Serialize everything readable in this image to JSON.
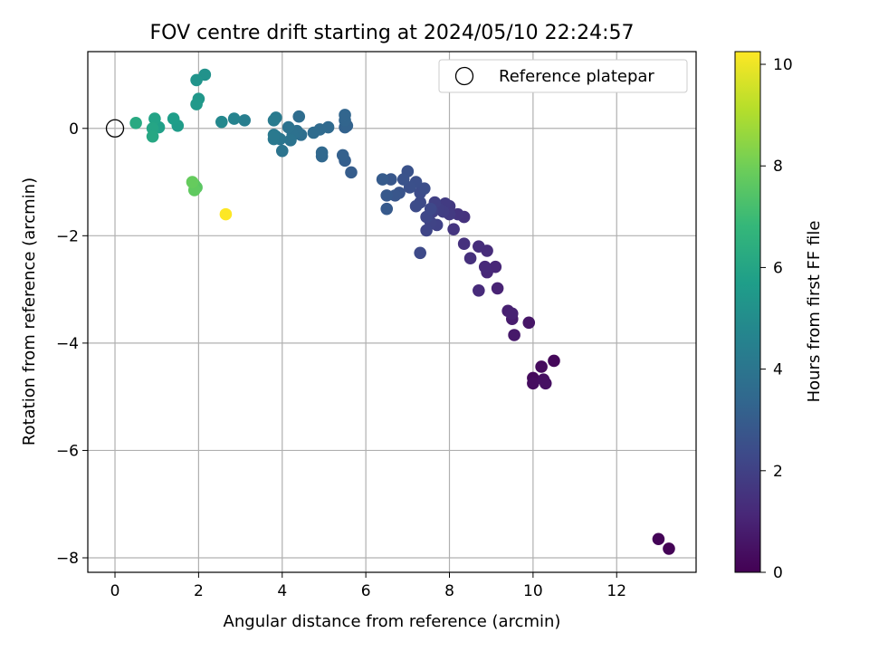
{
  "chart_data": {
    "type": "scatter",
    "title": "FOV centre drift starting at 2024/05/10 22:24:57",
    "xlabel": "Angular distance from reference (arcmin)",
    "ylabel": "Rotation from reference (arcmin)",
    "xlim": [
      -0.65,
      13.9
    ],
    "ylim": [
      -8.27,
      1.43
    ],
    "xticks": [
      0,
      2,
      4,
      6,
      8,
      10,
      12
    ],
    "yticks": [
      0,
      -2,
      -4,
      -6,
      -8
    ],
    "grid": true,
    "legend": {
      "position": "top-right",
      "entries": [
        {
          "label": "Reference platepar",
          "marker": "open-circle"
        }
      ]
    },
    "reference_point": {
      "x": 0,
      "y": 0
    },
    "colorbar": {
      "label": "Hours from first FF file",
      "min": 0,
      "max": 10.25,
      "ticks": [
        0,
        2,
        4,
        6,
        8,
        10
      ],
      "colormap": "viridis",
      "colors": [
        "#440154",
        "#482878",
        "#3e4989",
        "#31688e",
        "#26828e",
        "#1f9e89",
        "#35b779",
        "#6ece58",
        "#b5de2b",
        "#fde725"
      ]
    },
    "series": [
      {
        "points": [
          [
            13.25,
            -7.83,
            0.05
          ],
          [
            13.0,
            -7.65,
            0.1
          ],
          [
            10.5,
            -4.33,
            0.2
          ],
          [
            10.2,
            -4.44,
            0.3
          ],
          [
            10.0,
            -4.65,
            0.25
          ],
          [
            10.0,
            -4.75,
            0.35
          ],
          [
            10.25,
            -4.68,
            0.4
          ],
          [
            10.3,
            -4.75,
            0.45
          ],
          [
            9.9,
            -3.62,
            0.6
          ],
          [
            9.55,
            -3.85,
            0.7
          ],
          [
            9.5,
            -3.55,
            0.8
          ],
          [
            9.4,
            -3.4,
            0.9
          ],
          [
            9.5,
            -3.45,
            0.95
          ],
          [
            9.15,
            -2.98,
            1.0
          ],
          [
            9.1,
            -2.58,
            1.1
          ],
          [
            8.9,
            -2.68,
            1.15
          ],
          [
            8.85,
            -2.58,
            1.2
          ],
          [
            8.7,
            -3.02,
            1.25
          ],
          [
            8.9,
            -2.28,
            1.3
          ],
          [
            8.7,
            -2.2,
            1.35
          ],
          [
            8.5,
            -2.42,
            1.4
          ],
          [
            8.35,
            -2.15,
            1.45
          ],
          [
            8.35,
            -1.65,
            1.5
          ],
          [
            8.2,
            -1.6,
            1.55
          ],
          [
            8.1,
            -1.88,
            1.6
          ],
          [
            8.0,
            -1.45,
            1.7
          ],
          [
            8.0,
            -1.6,
            1.75
          ],
          [
            7.9,
            -1.4,
            1.8
          ],
          [
            7.85,
            -1.55,
            1.85
          ],
          [
            7.75,
            -1.5,
            1.9
          ],
          [
            7.65,
            -1.38,
            1.95
          ],
          [
            7.6,
            -1.55,
            2.0
          ],
          [
            7.7,
            -1.8,
            2.05
          ],
          [
            7.55,
            -1.75,
            2.1
          ],
          [
            7.45,
            -1.9,
            2.15
          ],
          [
            7.45,
            -1.65,
            2.2
          ],
          [
            7.55,
            -1.5,
            2.25
          ],
          [
            7.3,
            -1.38,
            2.3
          ],
          [
            7.2,
            -1.45,
            2.35
          ],
          [
            7.3,
            -1.2,
            2.4
          ],
          [
            7.4,
            -1.12,
            2.45
          ],
          [
            7.2,
            -1.0,
            2.5
          ],
          [
            7.05,
            -1.1,
            2.55
          ],
          [
            7.0,
            -0.8,
            2.6
          ],
          [
            6.9,
            -0.95,
            2.65
          ],
          [
            6.8,
            -1.2,
            2.7
          ],
          [
            6.7,
            -1.25,
            2.75
          ],
          [
            6.6,
            -0.95,
            2.8
          ],
          [
            6.5,
            -1.25,
            2.85
          ],
          [
            6.5,
            -1.5,
            2.9
          ],
          [
            6.4,
            -0.95,
            2.95
          ],
          [
            7.3,
            -2.32,
            2.3
          ],
          [
            5.65,
            -0.82,
            3.0
          ],
          [
            5.5,
            -0.6,
            3.1
          ],
          [
            5.45,
            -0.5,
            3.15
          ],
          [
            5.5,
            0.02,
            3.2
          ],
          [
            5.55,
            0.05,
            3.25
          ],
          [
            5.5,
            0.15,
            3.3
          ],
          [
            5.5,
            0.25,
            3.35
          ],
          [
            4.95,
            -0.52,
            3.4
          ],
          [
            4.95,
            -0.45,
            3.45
          ],
          [
            5.1,
            0.02,
            3.5
          ],
          [
            4.9,
            -0.02,
            3.55
          ],
          [
            4.75,
            -0.08,
            3.6
          ],
          [
            4.4,
            0.22,
            3.65
          ],
          [
            4.45,
            -0.12,
            3.7
          ],
          [
            4.35,
            -0.05,
            3.75
          ],
          [
            4.25,
            -0.12,
            3.8
          ],
          [
            4.15,
            0.02,
            3.85
          ],
          [
            4.2,
            -0.22,
            3.9
          ],
          [
            4.0,
            -0.42,
            3.95
          ],
          [
            3.95,
            -0.2,
            4.0
          ],
          [
            3.85,
            -0.15,
            4.05
          ],
          [
            3.8,
            -0.2,
            4.1
          ],
          [
            3.8,
            -0.12,
            4.15
          ],
          [
            3.85,
            0.2,
            4.2
          ],
          [
            3.8,
            0.15,
            4.25
          ],
          [
            3.1,
            0.15,
            4.4
          ],
          [
            2.85,
            0.18,
            4.6
          ],
          [
            2.55,
            0.12,
            4.8
          ],
          [
            2.15,
            1.0,
            5.2
          ],
          [
            1.95,
            0.9,
            5.3
          ],
          [
            2.0,
            0.55,
            5.4
          ],
          [
            1.95,
            0.45,
            5.5
          ],
          [
            1.5,
            0.05,
            5.6
          ],
          [
            1.4,
            0.18,
            5.7
          ],
          [
            1.05,
            0.02,
            5.8
          ],
          [
            0.95,
            0.18,
            5.9
          ],
          [
            0.9,
            0.0,
            6.0
          ],
          [
            0.9,
            -0.15,
            6.1
          ],
          [
            0.5,
            0.1,
            6.2
          ],
          [
            1.9,
            -1.05,
            7.5
          ],
          [
            1.95,
            -1.1,
            7.6
          ],
          [
            1.9,
            -1.15,
            7.7
          ],
          [
            1.85,
            -1.0,
            7.8
          ],
          [
            2.65,
            -1.6,
            10.25
          ]
        ]
      }
    ]
  }
}
